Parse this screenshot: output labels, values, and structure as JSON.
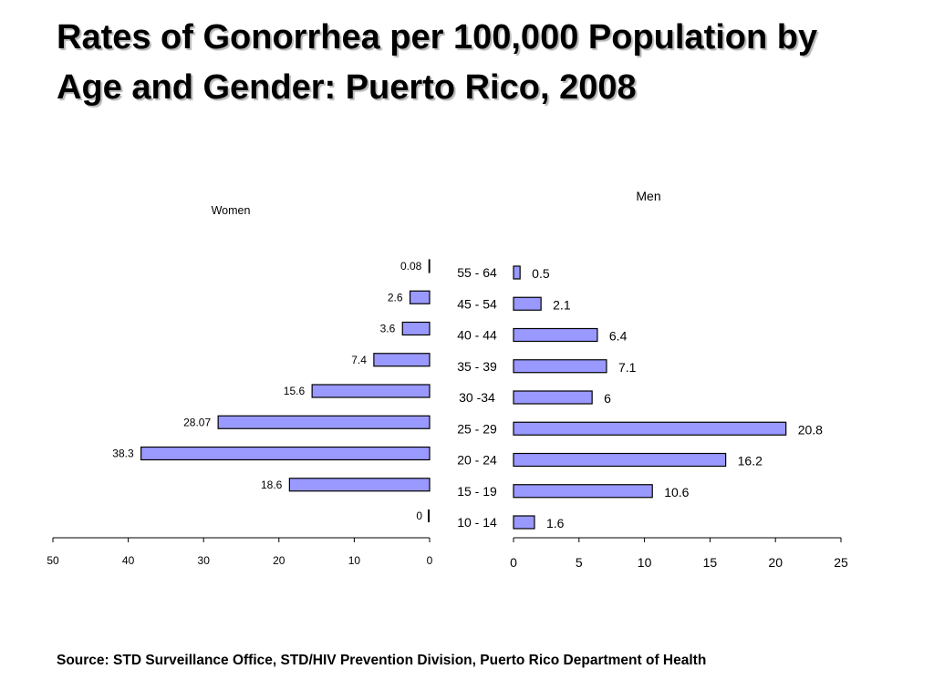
{
  "title": "Rates of Gonorrhea per 100,000 Population by Age and Gender: Puerto Rico, 2008",
  "source": "Source: STD Surveillance Office, STD/HIV Prevention Division, Puerto Rico Department of Health",
  "colors": {
    "bar_fill": "#9999ff",
    "bar_stroke": "#000000",
    "axis": "#000000"
  },
  "chart_data": [
    {
      "type": "bar",
      "orientation": "horizontal",
      "direction": "right-to-left",
      "title": "Women",
      "categories": [
        "10 - 14",
        "15 - 19",
        "20 - 24",
        "25 - 29",
        "30 -34",
        "35 - 39",
        "40 - 44",
        "45 - 54",
        "55 - 64"
      ],
      "values": [
        0,
        18.6,
        38.3,
        28.07,
        15.6,
        7.4,
        3.6,
        2.6,
        0.08
      ],
      "data_labels": [
        "0",
        "18.6",
        "38.3",
        "28.07",
        "15.6",
        "7.4",
        "3.6",
        "2.6",
        "0.08"
      ],
      "xlim": [
        0,
        50
      ],
      "xticks": [
        50,
        40,
        30,
        20,
        10,
        0
      ],
      "grid": false
    },
    {
      "type": "bar",
      "orientation": "horizontal",
      "direction": "left-to-right",
      "title": "Men",
      "categories": [
        "10 - 14",
        "15 - 19",
        "20 - 24",
        "25 - 29",
        "30 -34",
        "35 - 39",
        "40 - 44",
        "45 - 54",
        "55 - 64"
      ],
      "values": [
        1.6,
        10.6,
        16.2,
        20.8,
        6,
        7.1,
        6.4,
        2.1,
        0.5
      ],
      "data_labels": [
        "1.6",
        "10.6",
        "16.2",
        "20.8",
        "6",
        "7.1",
        "6.4",
        "2.1",
        "0.5"
      ],
      "xlim": [
        0,
        25
      ],
      "xticks": [
        0,
        5,
        10,
        15,
        20,
        25
      ],
      "grid": false
    }
  ]
}
